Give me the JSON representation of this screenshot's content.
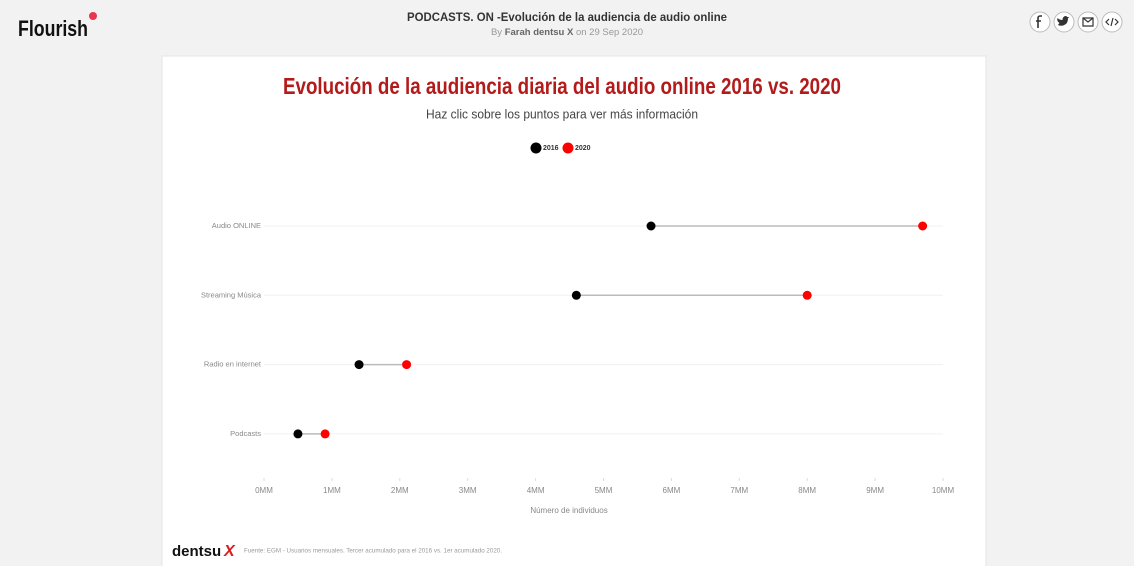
{
  "header": {
    "brand": "Flourish",
    "title": "PODCASTS. ON -Evolución de la audiencia de audio online",
    "byline": [
      "By",
      "Farah dentsu X",
      "on 29 Sep 2020"
    ]
  },
  "chart_data": {
    "type": "dumbbell",
    "title": "Evolución de la audiencia diaria del audio online 2016 vs. 2020",
    "subtitle": "Haz clic sobre los puntos para ver más información",
    "categories": [
      "Audio ONLINE",
      "Streaming Música",
      "Radio en internet",
      "Podcasts"
    ],
    "series": [
      {
        "name": "2016",
        "color": "#000000",
        "values": [
          5.7,
          4.6,
          1.4,
          0.5
        ]
      },
      {
        "name": "2020",
        "color": "#ff0000",
        "values": [
          9.7,
          8.0,
          2.1,
          0.9
        ]
      }
    ],
    "xlim": [
      0,
      10
    ],
    "xticks": [
      {
        "value": 0,
        "label": "0MM"
      },
      {
        "value": 1,
        "label": "1MM"
      },
      {
        "value": 2,
        "label": "2MM"
      },
      {
        "value": 3,
        "label": "3MM"
      },
      {
        "value": 4,
        "label": "4MM"
      },
      {
        "value": 5,
        "label": "5MM"
      },
      {
        "value": 6,
        "label": "6MM"
      },
      {
        "value": 7,
        "label": "7MM"
      },
      {
        "value": 8,
        "label": "8MM"
      },
      {
        "value": 9,
        "label": "9MM"
      },
      {
        "value": 10,
        "label": "10MM"
      }
    ],
    "xlabel": "Número de individuos",
    "legend": "top"
  },
  "footer": {
    "logo": "dentsu",
    "logo_mark": "X",
    "source": "Fuente: EGM - Usuarios mensuales. Tercer acumulado para el 2016 vs. 1er acumulado 2020."
  }
}
